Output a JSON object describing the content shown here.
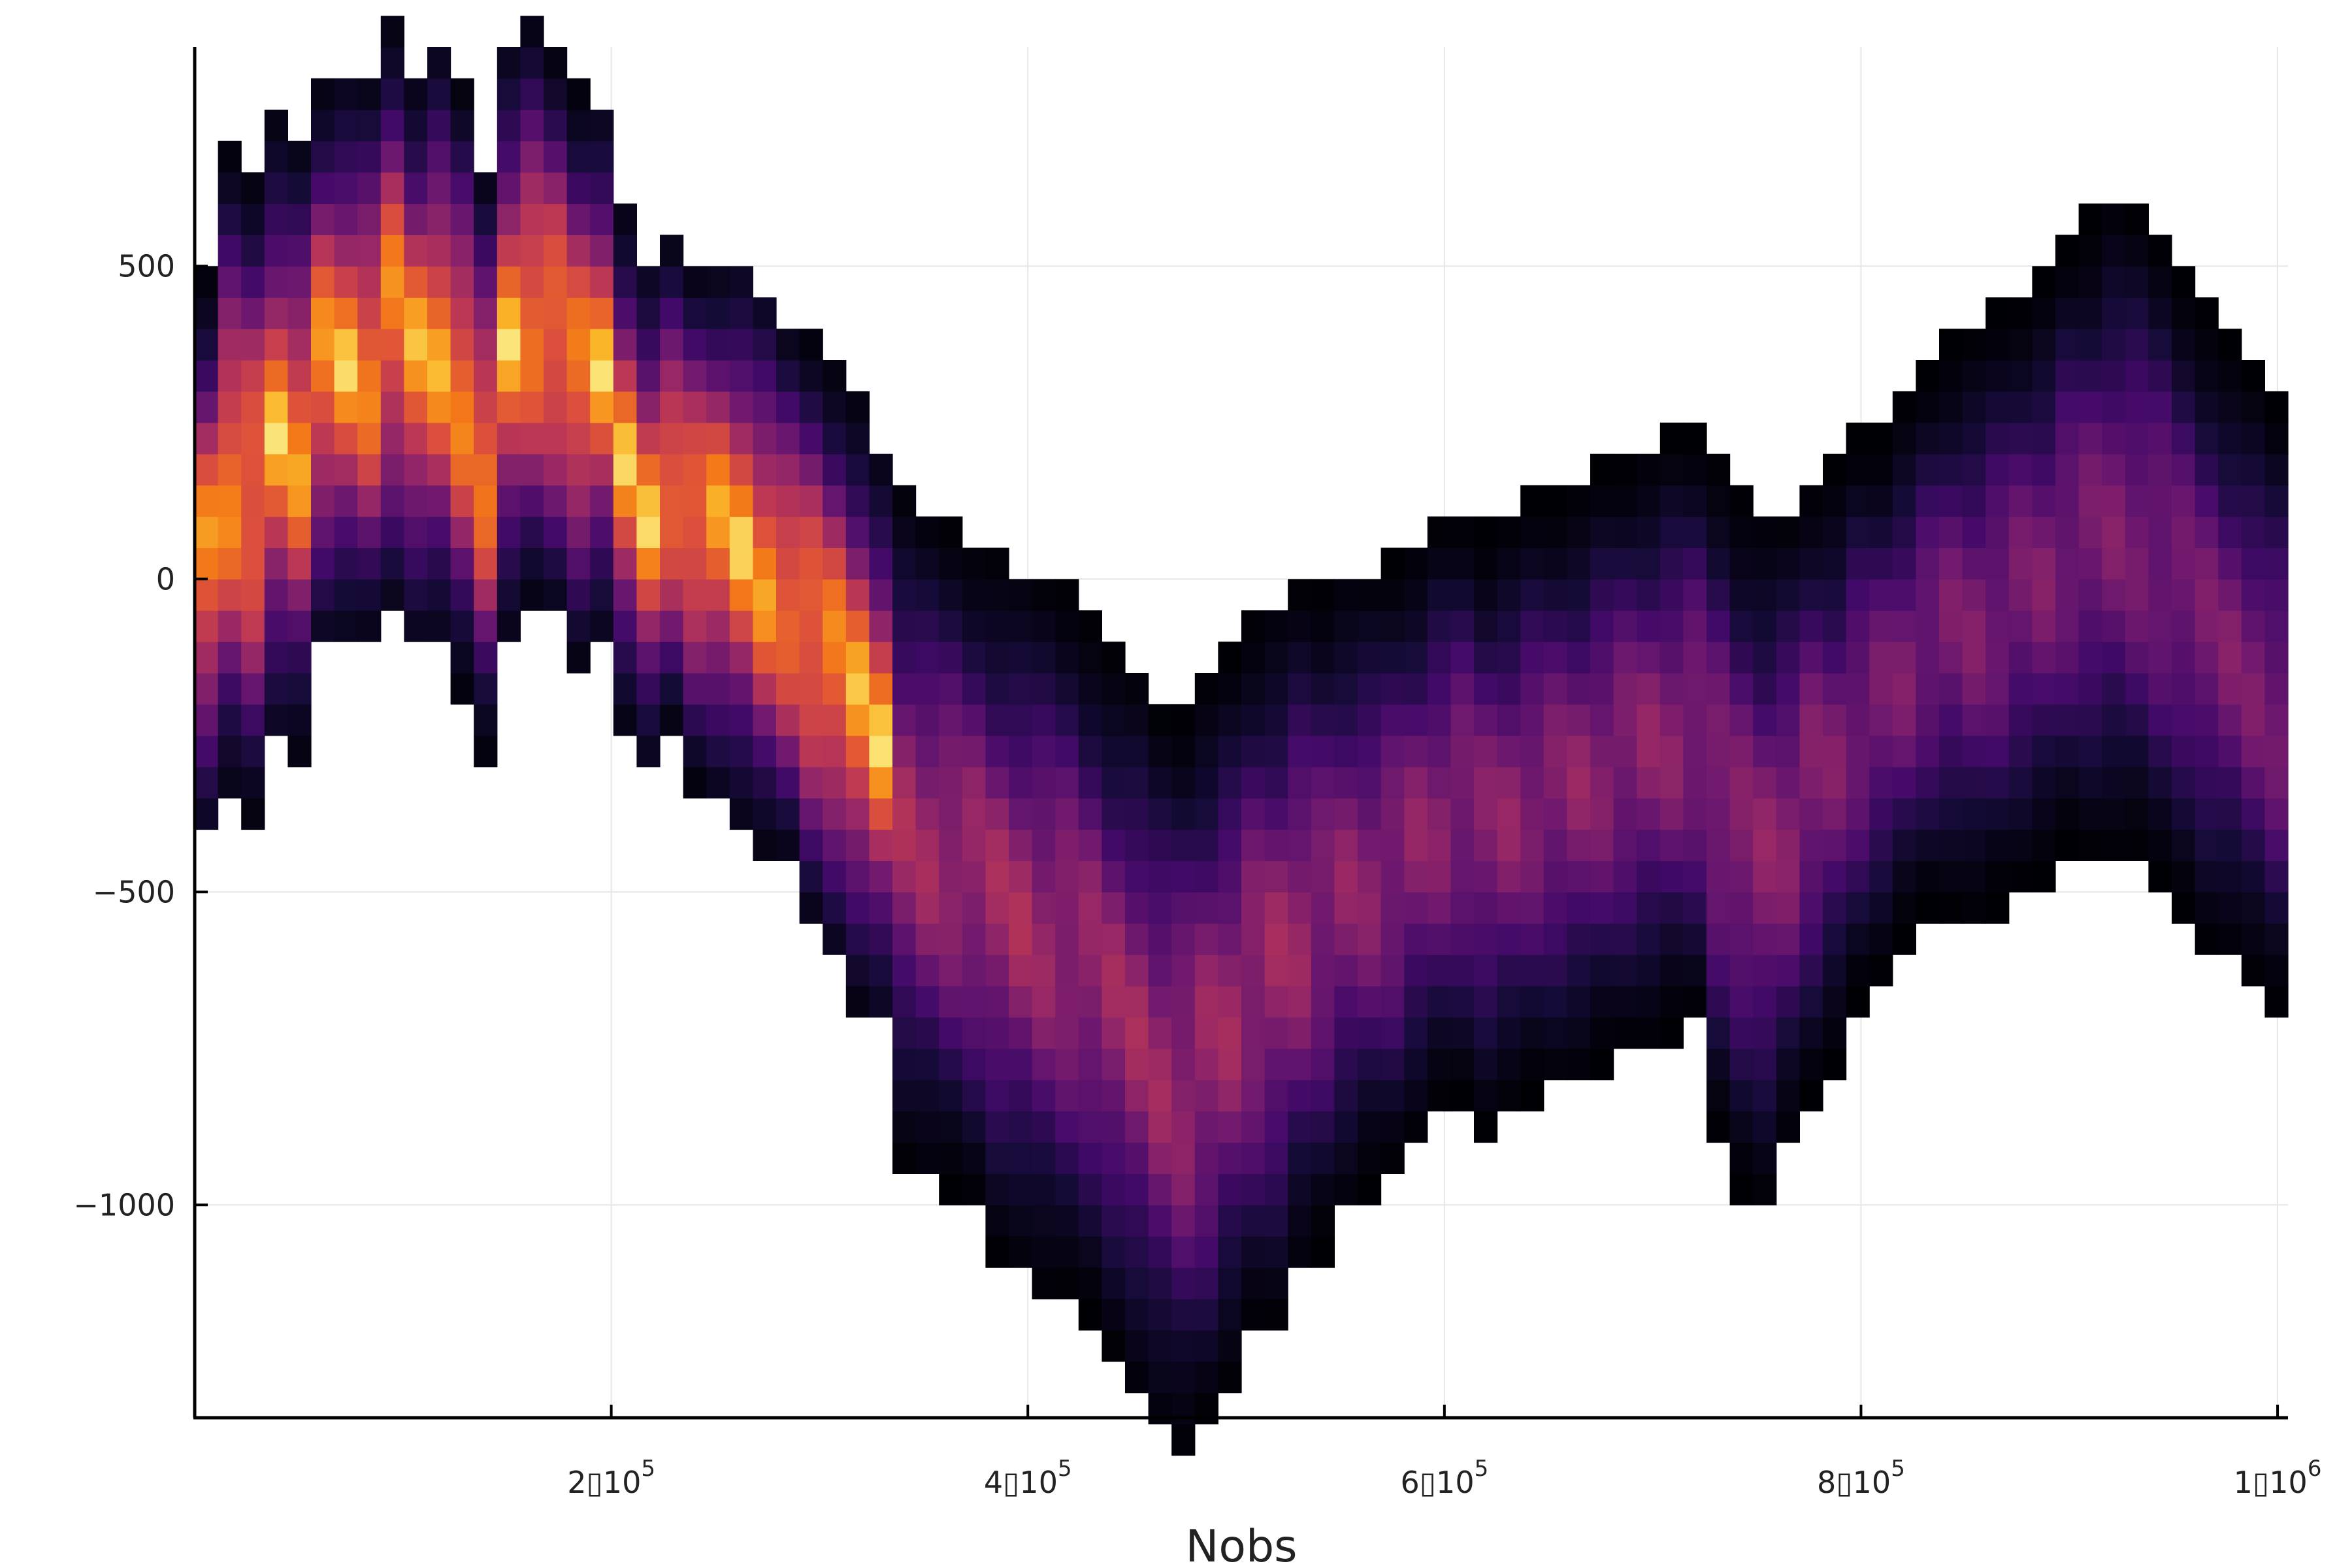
{
  "chart_data": {
    "type": "heatmap",
    "xlabel": "Nobs",
    "ylabel": "",
    "title": "",
    "grid": true,
    "legend": "none",
    "xlim": [
      0,
      1005000
    ],
    "ylim": [
      -1340,
      850
    ],
    "x_ticks": [
      {
        "value": 200000,
        "mant": "2",
        "sep": "▯",
        "base": "10",
        "exp": "5"
      },
      {
        "value": 400000,
        "mant": "4",
        "sep": "▯",
        "base": "10",
        "exp": "5"
      },
      {
        "value": 600000,
        "mant": "6",
        "sep": "▯",
        "base": "10",
        "exp": "5"
      },
      {
        "value": 800000,
        "mant": "8",
        "sep": "▯",
        "base": "10",
        "exp": "5"
      },
      {
        "value": 1000000,
        "mant": "1",
        "sep": "▯",
        "base": "10",
        "exp": "6"
      }
    ],
    "y_ticks": [
      {
        "value": 500,
        "label": "500"
      },
      {
        "value": 0,
        "label": "0"
      },
      {
        "value": -500,
        "label": "−500"
      },
      {
        "value": -1000,
        "label": "−1000"
      }
    ],
    "colormap": "inferno",
    "columns": {
      "x_start": 0,
      "x_end": 1005000,
      "centers": [
        30,
        160,
        130,
        230,
        210,
        340,
        350,
        340,
        420,
        350,
        370,
        300,
        190,
        380,
        420,
        390,
        320,
        330,
        180,
        100,
        150,
        90,
        80,
        60,
        10,
        -30,
        -90,
        -140,
        -200,
        -260,
        -390,
        -420,
        -440,
        -470,
        -520,
        -540,
        -560,
        -580,
        -620,
        -680,
        -720,
        -780,
        -800,
        -760,
        -700,
        -640,
        -620,
        -560,
        -540,
        -500,
        -480,
        -460,
        -420,
        -380,
        -360,
        -400,
        -380,
        -350,
        -340,
        -330,
        -300,
        -280,
        -270,
        -250,
        -240,
        -350,
        -420,
        -450,
        -400,
        -330,
        -300,
        -230,
        -200,
        -150,
        -100,
        -80,
        -80,
        -50,
        -20,
        0,
        50,
        60,
        80,
        70,
        30,
        -20,
        -80,
        -120,
        -160,
        -210
      ],
      "widths": [
        430,
        500,
        500,
        480,
        470,
        440,
        440,
        440,
        460,
        440,
        470,
        460,
        450,
        460,
        460,
        440,
        440,
        420,
        400,
        400,
        380,
        400,
        420,
        440,
        440,
        420,
        460,
        460,
        460,
        440,
        520,
        520,
        520,
        520,
        540,
        540,
        560,
        560,
        540,
        540,
        560,
        560,
        580,
        580,
        560,
        560,
        560,
        540,
        520,
        500,
        480,
        480,
        460,
        460,
        460,
        460,
        460,
        460,
        460,
        460,
        460,
        460,
        460,
        460,
        460,
        540,
        540,
        540,
        500,
        480,
        460,
        440,
        420,
        420,
        420,
        440,
        460,
        460,
        460,
        460,
        480,
        500,
        520,
        520,
        520,
        500,
        500,
        480,
        480,
        480
      ],
      "amplitude": [
        1,
        1,
        1,
        1,
        1,
        1,
        1,
        1,
        1,
        1,
        1,
        1,
        1,
        1,
        1,
        1,
        1,
        1,
        1,
        1,
        1,
        1,
        1,
        1,
        1,
        1,
        1,
        1,
        1,
        1,
        0.62,
        0.62,
        0.62,
        0.62,
        0.62,
        0.62,
        0.6,
        0.6,
        0.6,
        0.6,
        0.6,
        0.6,
        0.6,
        0.6,
        0.6,
        0.6,
        0.6,
        0.6,
        0.55,
        0.55,
        0.55,
        0.55,
        0.55,
        0.55,
        0.55,
        0.55,
        0.55,
        0.55,
        0.55,
        0.55,
        0.55,
        0.55,
        0.55,
        0.55,
        0.55,
        0.55,
        0.55,
        0.55,
        0.55,
        0.55,
        0.5,
        0.5,
        0.5,
        0.5,
        0.5,
        0.5,
        0.5,
        0.5,
        0.5,
        0.5,
        0.5,
        0.5,
        0.5,
        0.5,
        0.5,
        0.5,
        0.5,
        0.5,
        0.5,
        0.5
      ]
    }
  }
}
